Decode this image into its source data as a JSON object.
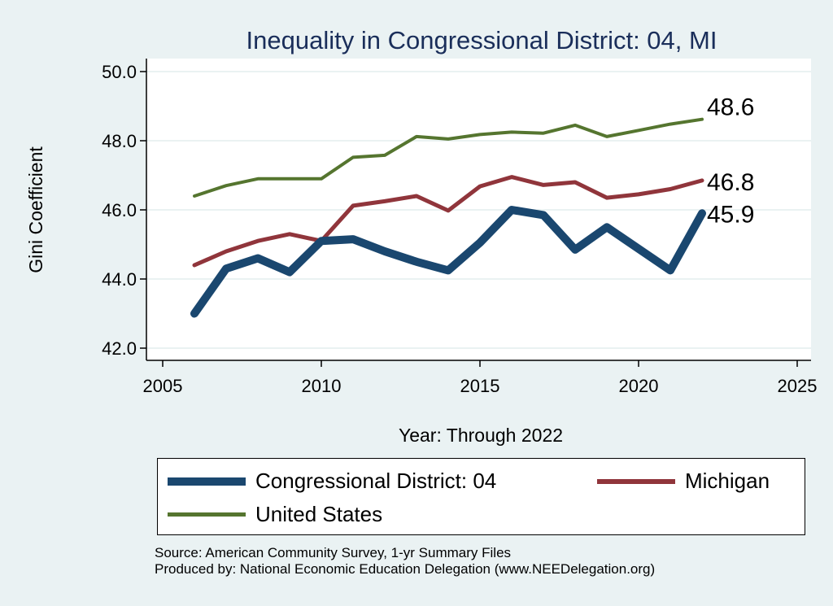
{
  "chart_data": {
    "type": "line",
    "title": "Inequality in Congressional District:  04, MI",
    "xlabel": "Year: Through 2022",
    "ylabel": "Gini Coefficient",
    "xlim": [
      2005,
      2025
    ],
    "ylim": [
      42.0,
      50.0
    ],
    "xticks": [
      2005,
      2010,
      2015,
      2020,
      2025
    ],
    "yticks": [
      42.0,
      44.0,
      46.0,
      48.0,
      50.0
    ],
    "grid": "horizontal",
    "series": [
      {
        "name": "Congressional District:  04",
        "color": "#1a476f",
        "x": [
          2006,
          2007,
          2008,
          2009,
          2010,
          2011,
          2012,
          2013,
          2014,
          2015,
          2016,
          2017,
          2018,
          2019,
          2021,
          2022
        ],
        "values": [
          43.0,
          44.3,
          44.6,
          44.2,
          45.1,
          45.15,
          44.8,
          44.5,
          44.25,
          45.05,
          46.0,
          45.85,
          44.85,
          45.5,
          44.25,
          45.9
        ],
        "end_label": "45.9"
      },
      {
        "name": "Michigan",
        "color": "#90353b",
        "x": [
          2006,
          2007,
          2008,
          2009,
          2010,
          2011,
          2012,
          2013,
          2014,
          2015,
          2016,
          2017,
          2018,
          2019,
          2020,
          2021,
          2022
        ],
        "values": [
          44.4,
          44.8,
          45.1,
          45.3,
          45.1,
          46.12,
          46.25,
          46.4,
          45.98,
          46.68,
          46.95,
          46.72,
          46.8,
          46.35,
          46.45,
          46.6,
          46.85
        ],
        "end_label": "46.8"
      },
      {
        "name": "United States",
        "color": "#55752f",
        "x": [
          2006,
          2007,
          2008,
          2009,
          2010,
          2011,
          2012,
          2013,
          2014,
          2015,
          2016,
          2017,
          2018,
          2019,
          2020,
          2021,
          2022
        ],
        "values": [
          46.4,
          46.7,
          46.9,
          46.9,
          46.9,
          47.52,
          47.58,
          48.12,
          48.05,
          48.18,
          48.25,
          48.22,
          48.45,
          48.12,
          48.3,
          48.48,
          48.62
        ],
        "end_label": "48.6"
      }
    ],
    "legend": {
      "items": [
        {
          "label": "Congressional District:  04",
          "color": "#1a476f"
        },
        {
          "label": "Michigan",
          "color": "#90353b"
        },
        {
          "label": "United States",
          "color": "#55752f"
        }
      ]
    }
  },
  "source": {
    "line1": "Source: American Community Survey, 1-yr Summary Files",
    "line2": "Produced by: National Economic Education Delegation (www.NEEDelegation.org)"
  }
}
